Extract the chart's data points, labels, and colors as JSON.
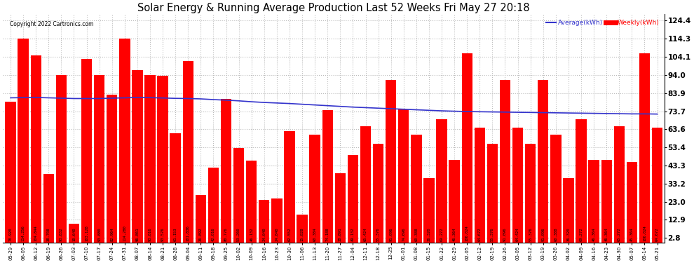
{
  "title": "Solar Energy & Running Average Production Last 52 Weeks Fri May 27 20:18",
  "copyright": "Copyright 2022 Cartronics.com",
  "legend_avg": "Average(kWh)",
  "legend_weekly": "Weekly(kWh)",
  "yticks": [
    2.8,
    12.9,
    23.0,
    33.2,
    43.3,
    53.4,
    63.6,
    73.7,
    83.9,
    94.0,
    104.1,
    114.3,
    124.4
  ],
  "bar_color": "#ff0000",
  "avg_line_color": "#3333cc",
  "bar_values": [
    78.92,
    114.256,
    104.844,
    38.708,
    93.832,
    10.64,
    103.128,
    93.88,
    82.964,
    114.28,
    96.861,
    93.816,
    93.576,
    61.153,
    101.836,
    26.892,
    42.016,
    80.776,
    53.26,
    46.132,
    24.04,
    24.84,
    62.552,
    15.828,
    60.384,
    74.188,
    38.891,
    49.132,
    65.424,
    55.376,
    91.096,
    74.696,
    60.388,
    36.32,
    69.272,
    46.364,
    106.024,
    64.672,
    55.376,
    91.096,
    64.424,
    55.376,
    91.096,
    60.388,
    36.32,
    69.272,
    46.364,
    46.364,
    65.272,
    45.364,
    106.024,
    64.672
  ],
  "avg_values": [
    81.2,
    81.3,
    81.4,
    81.2,
    81.0,
    80.8,
    80.8,
    80.8,
    81.0,
    81.2,
    81.4,
    81.3,
    81.1,
    80.9,
    80.8,
    80.6,
    80.2,
    79.9,
    79.5,
    79.0,
    78.6,
    78.3,
    78.0,
    77.6,
    77.2,
    76.8,
    76.4,
    76.0,
    75.7,
    75.4,
    75.1,
    74.8,
    74.5,
    74.2,
    73.9,
    73.7,
    73.5,
    73.4,
    73.3,
    73.2,
    73.1,
    73.0,
    72.9,
    72.8,
    72.7,
    72.6,
    72.5,
    72.4,
    72.3,
    72.2,
    72.2,
    72.1
  ],
  "xlabels": [
    "05-29",
    "06-05",
    "06-12",
    "06-19",
    "06-26",
    "07-03",
    "07-10",
    "07-17",
    "07-24",
    "07-31",
    "08-07",
    "08-14",
    "08-21",
    "08-28",
    "09-04",
    "09-11",
    "09-18",
    "09-25",
    "10-02",
    "10-09",
    "10-16",
    "10-23",
    "10-30",
    "11-06",
    "11-13",
    "11-20",
    "11-27",
    "12-04",
    "12-11",
    "12-18",
    "12-25",
    "01-01",
    "01-08",
    "01-15",
    "01-22",
    "01-29",
    "02-05",
    "02-12",
    "02-19",
    "02-26",
    "03-05",
    "03-12",
    "03-19",
    "03-26",
    "04-02",
    "04-09",
    "04-16",
    "04-23",
    "04-30",
    "05-07",
    "05-14",
    "05-21"
  ],
  "background_color": "#ffffff",
  "grid_color": "#bbbbbb",
  "ylim_min": 0,
  "ylim_max": 128
}
